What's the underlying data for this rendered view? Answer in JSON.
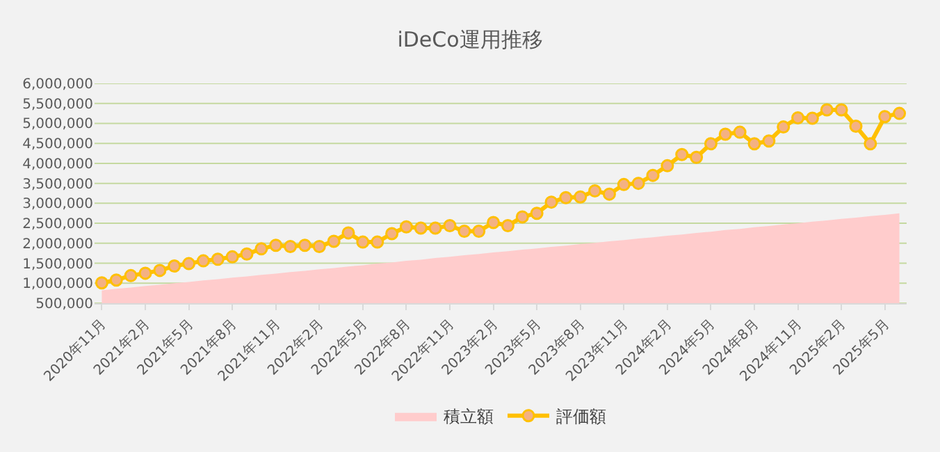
{
  "chart_data": {
    "type": "line",
    "title": "iDeCo運用推移",
    "categories": [
      "2020年11月",
      null,
      null,
      "2021年2月",
      null,
      null,
      "2021年5月",
      null,
      null,
      "2021年8月",
      null,
      null,
      "2021年11月",
      null,
      null,
      "2022年2月",
      null,
      null,
      "2022年5月",
      null,
      null,
      "2022年8月",
      null,
      null,
      "2022年11月",
      null,
      null,
      "2023年2月",
      null,
      null,
      "2023年5月",
      null,
      null,
      "2023年8月",
      null,
      null,
      "2023年11月",
      null,
      null,
      "2024年2月",
      null,
      null,
      "2024年5月",
      null,
      null,
      "2024年8月",
      null,
      null,
      "2024年11月",
      null,
      null,
      "2025年2月",
      null,
      null,
      "2025年5月",
      null
    ],
    "series": [
      {
        "name": "積立額",
        "type": "area",
        "marker": "none",
        "color": "#ffcccc",
        "values": [
          820000,
          860000,
          890000,
          930000,
          960000,
          1000000,
          1030000,
          1070000,
          1100000,
          1140000,
          1170000,
          1210000,
          1240000,
          1280000,
          1310000,
          1350000,
          1380000,
          1420000,
          1450000,
          1490000,
          1520000,
          1560000,
          1590000,
          1630000,
          1660000,
          1700000,
          1730000,
          1770000,
          1800000,
          1840000,
          1870000,
          1910000,
          1940000,
          1980000,
          2010000,
          2050000,
          2080000,
          2120000,
          2150000,
          2190000,
          2220000,
          2260000,
          2290000,
          2330000,
          2360000,
          2400000,
          2430000,
          2470000,
          2500000,
          2540000,
          2570000,
          2610000,
          2640000,
          2680000,
          2710000,
          2750000
        ]
      },
      {
        "name": "評価額",
        "marker": "circle",
        "color": "#ffc000",
        "values": [
          1010000,
          1080000,
          1190000,
          1250000,
          1320000,
          1430000,
          1490000,
          1560000,
          1600000,
          1660000,
          1730000,
          1860000,
          1950000,
          1920000,
          1950000,
          1920000,
          2050000,
          2260000,
          2030000,
          2030000,
          2240000,
          2410000,
          2380000,
          2380000,
          2440000,
          2300000,
          2300000,
          2520000,
          2440000,
          2660000,
          2750000,
          3030000,
          3140000,
          3160000,
          3310000,
          3230000,
          3470000,
          3500000,
          3700000,
          3940000,
          4220000,
          4150000,
          4490000,
          4730000,
          4780000,
          4490000,
          4560000,
          4910000,
          5140000,
          5130000,
          5340000,
          5340000,
          4930000,
          4490000,
          5170000,
          5250000
        ]
      }
    ],
    "ylim": [
      500000,
      6000000
    ],
    "yticks": [
      {
        "value": 500000,
        "label": "500,000"
      },
      {
        "value": 1000000,
        "label": "1,000,000"
      },
      {
        "value": 1500000,
        "label": "1,500,000"
      },
      {
        "value": 2000000,
        "label": "2,000,000"
      },
      {
        "value": 2500000,
        "label": "2,500,000"
      },
      {
        "value": 3000000,
        "label": "3,000,000"
      },
      {
        "value": 3500000,
        "label": "3,500,000"
      },
      {
        "value": 4000000,
        "label": "4,000,000"
      },
      {
        "value": 4500000,
        "label": "4,500,000"
      },
      {
        "value": 5000000,
        "label": "5,000,000"
      },
      {
        "value": 5500000,
        "label": "5,500,000"
      },
      {
        "value": 6000000,
        "label": "6,000,000"
      }
    ],
    "grid": "y",
    "legend": "bottom",
    "line_style": "solid"
  }
}
